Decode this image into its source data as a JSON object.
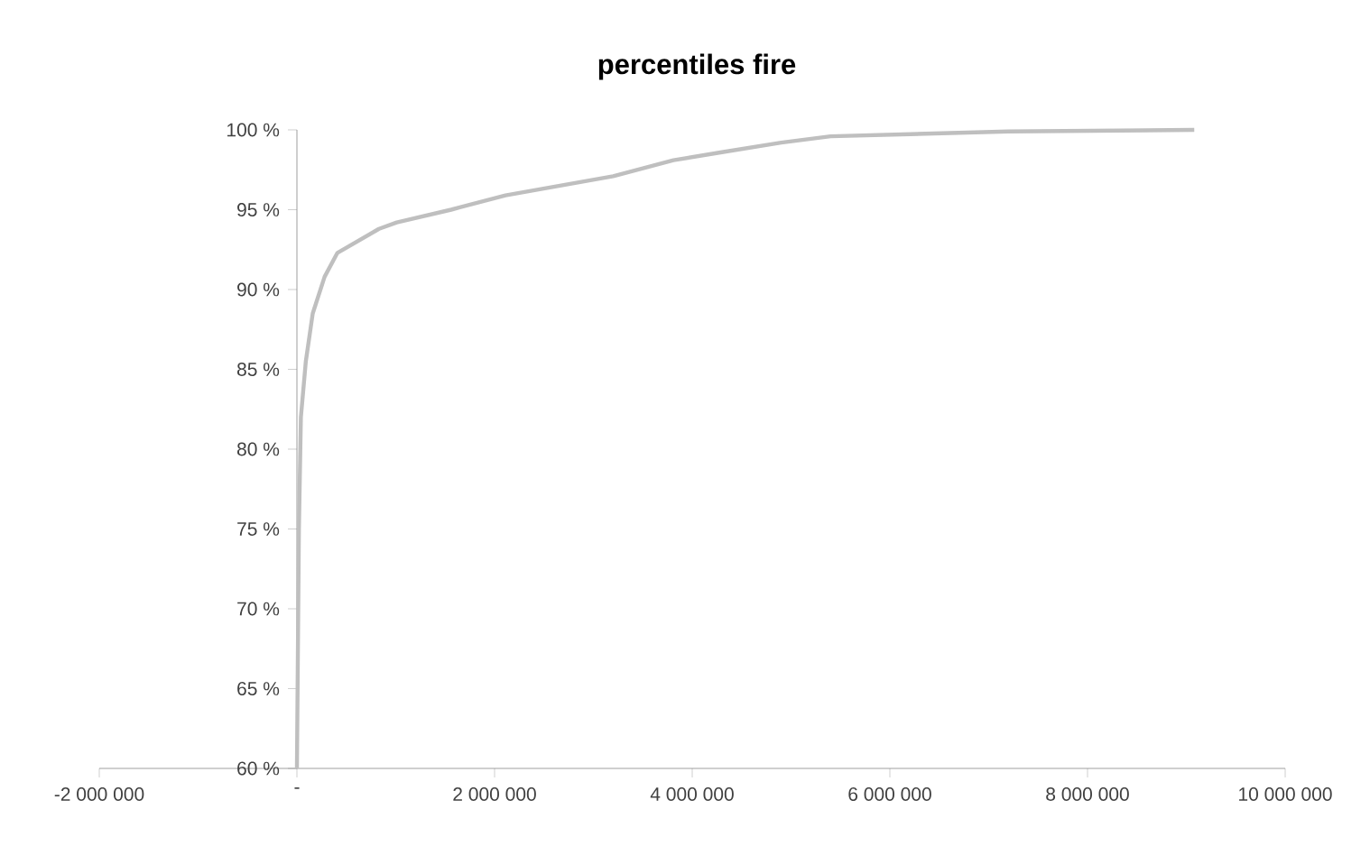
{
  "chart_data": {
    "type": "line",
    "title": "**percentiles fire**",
    "x": [
      0,
      20000,
      40000,
      90000,
      160000,
      280000,
      410000,
      830000,
      1010000,
      1560000,
      2110000,
      3200000,
      3810000,
      4300000,
      4900000,
      5400000,
      7200000,
      9080000
    ],
    "series": [
      {
        "color": "#bfbfbf",
        "values": [
          60,
          75,
          82,
          85.5,
          88.5,
          90.8,
          92.3,
          93.8,
          94.2,
          95.0,
          95.9,
          97.1,
          98.1,
          98.6,
          99.2,
          99.6,
          99.9,
          100
        ]
      }
    ],
    "xlim": [
      -2000000,
      10000000
    ],
    "xticks": [
      {
        "value": -2000000,
        "label": "-2 000 000"
      },
      {
        "value": 0,
        "label": "-"
      },
      {
        "value": 2000000,
        "label": "2 000 000"
      },
      {
        "value": 4000000,
        "label": "4 000 000"
      },
      {
        "value": 6000000,
        "label": "6 000 000"
      },
      {
        "value": 8000000,
        "label": "8 000 000"
      },
      {
        "value": 10000000,
        "label": "10 000 000"
      }
    ],
    "ylim": [
      60,
      100
    ],
    "yticks": [
      {
        "value": 60,
        "label": "60 %"
      },
      {
        "value": 65,
        "label": "65 %"
      },
      {
        "value": 70,
        "label": "70 %"
      },
      {
        "value": 75,
        "label": "75 %"
      },
      {
        "value": 80,
        "label": "80 %"
      },
      {
        "value": 85,
        "label": "85 %"
      },
      {
        "value": 90,
        "label": "90 %"
      },
      {
        "value": 95,
        "label": "95 %"
      },
      {
        "value": 100,
        "label": "100 %"
      }
    ],
    "grid": false,
    "legend": false,
    "marker": "none",
    "line_style": "solid"
  }
}
